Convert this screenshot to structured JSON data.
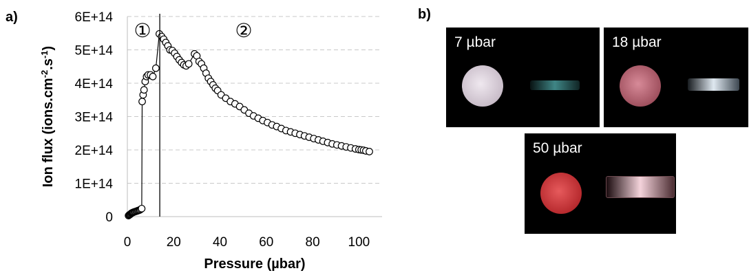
{
  "panel_a_label": "a)",
  "panel_b_label": "b)",
  "chart_data": {
    "type": "scatter",
    "xlabel": "Pressure (µbar)",
    "ylabel_main": "Ion flux (ions.cm",
    "ylabel_sup1": "-2",
    "ylabel_mid": ".s",
    "ylabel_sup2": "-1",
    "ylabel_end": ")",
    "xlim": [
      0,
      110
    ],
    "ylim": [
      0,
      600000000000000.0
    ],
    "x_ticks": [
      "0",
      "20",
      "40",
      "60",
      "80",
      "100"
    ],
    "y_ticks": [
      "0",
      "1E+14",
      "2E+14",
      "3E+14",
      "4E+14",
      "5E+14",
      "6E+14"
    ],
    "grid": "horizontal dashed",
    "vertical_line_x": 14,
    "regions": [
      "①",
      "②"
    ],
    "x": [
      0.5,
      0.8,
      1.1,
      1.4,
      1.7,
      2.0,
      2.3,
      2.6,
      3.0,
      3.4,
      3.8,
      4.2,
      4.6,
      5.0,
      5.4,
      5.8,
      6.2,
      6.4,
      6.8,
      7.2,
      7.7,
      8.3,
      9.0,
      10.0,
      11.0,
      12.3,
      13.8,
      14.8,
      15.7,
      16.6,
      17.5,
      18.4,
      19.4,
      20.4,
      21.4,
      22.4,
      23.4,
      24.4,
      25.4,
      26.5,
      29.0,
      30.0,
      31.0,
      32.0,
      33.0,
      34.0,
      35.0,
      36.0,
      37.0,
      38.0,
      39.0,
      40.5,
      42.5,
      44.5,
      46.5,
      48.5,
      50.5,
      52.5,
      54.5,
      56.5,
      58.5,
      60.5,
      62.5,
      64.5,
      66.5,
      68.5,
      70.5,
      72.5,
      74.5,
      76.5,
      78.5,
      80.5,
      82.5,
      84.5,
      86.5,
      88.5,
      90.5,
      92.5,
      94.5,
      96.5,
      98.5,
      100.0,
      101.0,
      102.0,
      103.0,
      104.5
    ],
    "y": [
      3000000000000.0,
      5000000000000.0,
      6000000000000.0,
      8000000000000.0,
      10000000000000.0,
      11000000000000.0,
      12000000000000.0,
      13000000000000.0,
      14000000000000.0,
      15000000000000.0,
      16000000000000.0,
      17000000000000.0,
      18000000000000.0,
      19000000000000.0,
      20000000000000.0,
      22000000000000.0,
      24000000000000.0,
      345000000000000.0,
      365000000000000.0,
      380000000000000.0,
      405000000000000.0,
      420000000000000.0,
      425000000000000.0,
      425000000000000.0,
      420000000000000.0,
      445000000000000.0,
      548000000000000.0,
      540000000000000.0,
      532000000000000.0,
      522000000000000.0,
      512000000000000.0,
      500000000000000.0,
      498000000000000.0,
      490000000000000.0,
      480000000000000.0,
      470000000000000.0,
      462000000000000.0,
      455000000000000.0,
      452000000000000.0,
      458000000000000.0,
      488000000000000.0,
      482000000000000.0,
      465000000000000.0,
      458000000000000.0,
      445000000000000.0,
      430000000000000.0,
      415000000000000.0,
      405000000000000.0,
      395000000000000.0,
      385000000000000.0,
      378000000000000.0,
      365000000000000.0,
      355000000000000.0,
      345000000000000.0,
      338000000000000.0,
      330000000000000.0,
      320000000000000.0,
      310000000000000.0,
      302000000000000.0,
      295000000000000.0,
      288000000000000.0,
      282000000000000.0,
      275000000000000.0,
      270000000000000.0,
      264000000000000.0,
      258000000000000.0,
      254000000000000.0,
      250000000000000.0,
      246000000000000.0,
      242000000000000.0,
      238000000000000.0,
      234000000000000.0,
      230000000000000.0,
      226000000000000.0,
      222000000000000.0,
      218000000000000.0,
      215000000000000.0,
      212000000000000.0,
      209000000000000.0,
      206000000000000.0,
      203000000000000.0,
      201000000000000.0,
      200000000000000.0,
      199000000000000.0,
      197000000000000.0,
      195000000000000.0
    ]
  },
  "photos": [
    {
      "label": "7 µbar",
      "orb_color": "#d9cfd9",
      "tube_color": "#3a7c7c"
    },
    {
      "label": "18 µbar",
      "orb_color": "#c07382",
      "tube_color": "#c9d4de"
    },
    {
      "label": "50 µbar",
      "orb_color": "#d23b3e",
      "tube_color": "#f0c6cf"
    }
  ]
}
